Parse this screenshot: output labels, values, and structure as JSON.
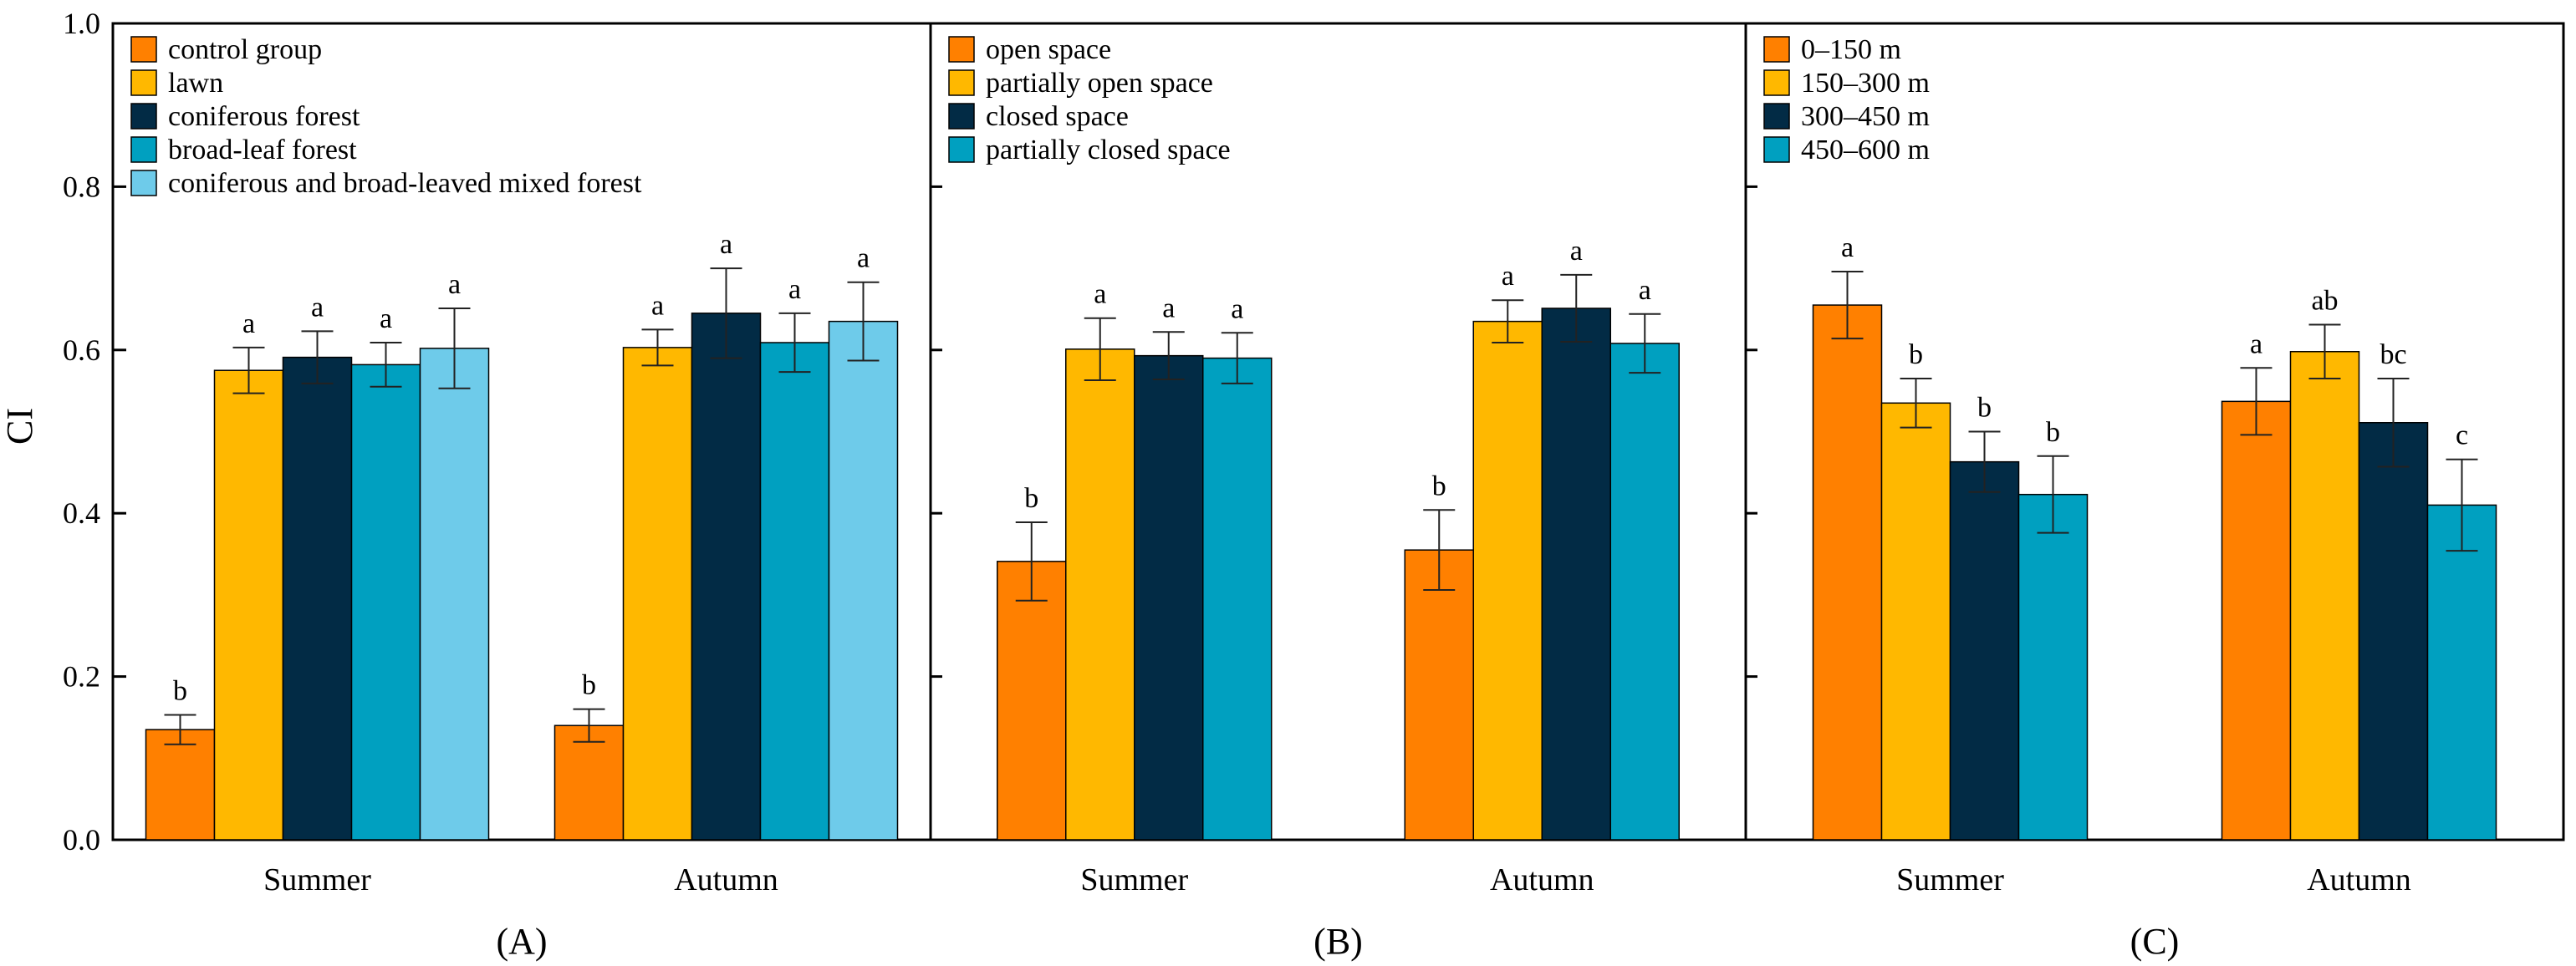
{
  "figure": {
    "ylabel": "CI",
    "yticks": [
      "0.0",
      "0.2",
      "0.4",
      "0.6",
      "0.8",
      "1.0"
    ],
    "ylim": [
      0,
      1.0
    ]
  },
  "colors": {
    "orange": "#FF8000",
    "gold": "#FFB800",
    "navy": "#022B45",
    "teal": "#00A0C0",
    "skyblue": "#6ECBEA",
    "axis": "#000000",
    "errorbar": "#222222"
  },
  "chart_data": [
    {
      "type": "bar",
      "panel_label": "(A)",
      "categories": [
        "Summer",
        "Autumn"
      ],
      "ylim": [
        0,
        1.0
      ],
      "ylabel": "CI",
      "legend_position": "top-left",
      "series": [
        {
          "name": "control group",
          "color": "#FF8000",
          "values": [
            0.135,
            0.14
          ],
          "errors": [
            0.018,
            0.02
          ],
          "letters": [
            "b",
            "b"
          ]
        },
        {
          "name": "lawn",
          "color": "#FFB800",
          "values": [
            0.575,
            0.603
          ],
          "errors": [
            0.028,
            0.022
          ],
          "letters": [
            "a",
            "a"
          ]
        },
        {
          "name": "coniferous forest",
          "color": "#022B45",
          "values": [
            0.591,
            0.645
          ],
          "errors": [
            0.032,
            0.055
          ],
          "letters": [
            "a",
            "a"
          ]
        },
        {
          "name": "broad-leaf forest",
          "color": "#00A0C0",
          "values": [
            0.582,
            0.609
          ],
          "errors": [
            0.027,
            0.036
          ],
          "letters": [
            "a",
            "a"
          ]
        },
        {
          "name": "coniferous and broad-leaved mixed forest",
          "color": "#6ECBEA",
          "values": [
            0.602,
            0.635
          ],
          "errors": [
            0.049,
            0.048
          ],
          "letters": [
            "a",
            "a"
          ]
        }
      ]
    },
    {
      "type": "bar",
      "panel_label": "(B)",
      "categories": [
        "Summer",
        "Autumn"
      ],
      "ylim": [
        0,
        1.0
      ],
      "legend_position": "top-left",
      "series": [
        {
          "name": "open space",
          "color": "#FF8000",
          "values": [
            0.341,
            0.355
          ],
          "errors": [
            0.048,
            0.049
          ],
          "letters": [
            "b",
            "b"
          ]
        },
        {
          "name": "partially open space",
          "color": "#FFB800",
          "values": [
            0.601,
            0.635
          ],
          "errors": [
            0.038,
            0.026
          ],
          "letters": [
            "a",
            "a"
          ]
        },
        {
          "name": "closed space",
          "color": "#022B45",
          "values": [
            0.593,
            0.651
          ],
          "errors": [
            0.029,
            0.041
          ],
          "letters": [
            "a",
            "a"
          ]
        },
        {
          "name": "partially closed space",
          "color": "#00A0C0",
          "values": [
            0.59,
            0.608
          ],
          "errors": [
            0.031,
            0.036
          ],
          "letters": [
            "a",
            "a"
          ]
        }
      ]
    },
    {
      "type": "bar",
      "panel_label": "(C)",
      "categories": [
        "Summer",
        "Autumn"
      ],
      "ylim": [
        0,
        1.0
      ],
      "legend_position": "top-left",
      "series": [
        {
          "name": "0–150 m",
          "color": "#FF8000",
          "values": [
            0.655,
            0.537
          ],
          "errors": [
            0.041,
            0.041
          ],
          "letters": [
            "a",
            "a"
          ]
        },
        {
          "name": "150–300 m",
          "color": "#FFB800",
          "values": [
            0.535,
            0.598
          ],
          "errors": [
            0.03,
            0.033
          ],
          "letters": [
            "b",
            "ab"
          ]
        },
        {
          "name": "300–450 m",
          "color": "#022B45",
          "values": [
            0.463,
            0.511
          ],
          "errors": [
            0.037,
            0.054
          ],
          "letters": [
            "b",
            "bc"
          ]
        },
        {
          "name": "450–600 m",
          "color": "#00A0C0",
          "values": [
            0.423,
            0.41
          ],
          "errors": [
            0.047,
            0.056
          ],
          "letters": [
            "b",
            "c"
          ]
        }
      ]
    }
  ]
}
